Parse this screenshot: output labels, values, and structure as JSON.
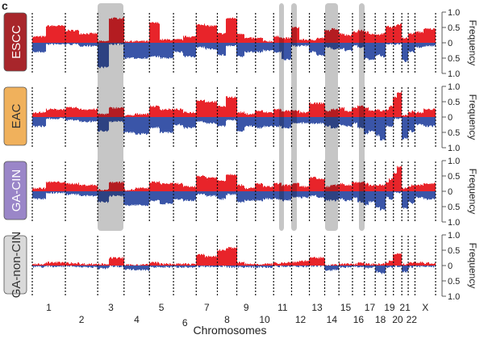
{
  "panel_letter": "c",
  "chart_data": {
    "type": "area",
    "xlabel": "Chromosomes",
    "ylabel": "Frequency",
    "ylim": [
      -1.0,
      1.0
    ],
    "y_ticks": [
      "1.0",
      "0.5",
      "0",
      "0.5",
      "1.0"
    ],
    "grid": false,
    "colors": {
      "gain": "#e8242a",
      "loss": "#3a55a8",
      "highlight": "#c6c6c6"
    },
    "chromosomes": [
      "1",
      "2",
      "3",
      "4",
      "5",
      "6",
      "7",
      "8",
      "9",
      "10",
      "11",
      "12",
      "13",
      "14",
      "15",
      "16",
      "17",
      "18",
      "19",
      "20",
      "21",
      "22",
      "X"
    ],
    "chromosome_sizes_mb": [
      249,
      243,
      198,
      191,
      181,
      171,
      159,
      146,
      141,
      136,
      135,
      134,
      115,
      107,
      102,
      90,
      81,
      78,
      59,
      63,
      48,
      51,
      155
    ],
    "highlighted_chromosomes": [
      "3",
      "11",
      "12",
      "14",
      "17"
    ],
    "value_format": "per chromosome [gain p-arm, gain q-arm, loss p-arm, loss q-arm] (frequency)",
    "series": [
      {
        "name": "ESCC",
        "label_color": "#a8262b",
        "label_text_color": "#ffffff",
        "values": [
          [
            0.2,
            0.55,
            0.3,
            0.05
          ],
          [
            0.4,
            0.3,
            0.05,
            0.1
          ],
          [
            0.05,
            0.8,
            0.8,
            0.05
          ],
          [
            0.05,
            0.05,
            0.5,
            0.5
          ],
          [
            0.65,
            0.1,
            0.45,
            0.5
          ],
          [
            0.1,
            0.2,
            0.3,
            0.45
          ],
          [
            0.6,
            0.55,
            0.15,
            0.2
          ],
          [
            0.3,
            0.8,
            0.4,
            0.1
          ],
          [
            0.3,
            0.15,
            0.45,
            0.3
          ],
          [
            0.15,
            0.05,
            0.3,
            0.25
          ],
          [
            0.2,
            0.15,
            0.3,
            0.55
          ],
          [
            0.5,
            0.1,
            0.1,
            0.1
          ],
          [
            0.1,
            0.15,
            0.3,
            0.4
          ],
          [
            0.4,
            0.45,
            0.15,
            0.2
          ],
          [
            0.3,
            0.25,
            0.2,
            0.25
          ],
          [
            0.35,
            0.4,
            0.1,
            0.15
          ],
          [
            0.35,
            0.3,
            0.5,
            0.55
          ],
          [
            0.25,
            0.3,
            0.4,
            0.45
          ],
          [
            0.55,
            0.5,
            0.05,
            0.05
          ],
          [
            0.55,
            0.6,
            0.05,
            0.05
          ],
          [
            0.15,
            0.15,
            0.55,
            0.6
          ],
          [
            0.3,
            0.3,
            0.3,
            0.3
          ],
          [
            0.35,
            0.45,
            0.15,
            0.1
          ]
        ]
      },
      {
        "name": "EAC",
        "label_color": "#f0b15c",
        "label_text_color": "#333333",
        "values": [
          [
            0.15,
            0.25,
            0.3,
            0.05
          ],
          [
            0.3,
            0.25,
            0.1,
            0.15
          ],
          [
            0.1,
            0.3,
            0.45,
            0.15
          ],
          [
            0.05,
            0.1,
            0.5,
            0.55
          ],
          [
            0.35,
            0.25,
            0.35,
            0.5
          ],
          [
            0.25,
            0.15,
            0.25,
            0.35
          ],
          [
            0.55,
            0.5,
            0.15,
            0.2
          ],
          [
            0.35,
            0.65,
            0.3,
            0.1
          ],
          [
            0.15,
            0.1,
            0.45,
            0.3
          ],
          [
            0.2,
            0.15,
            0.35,
            0.3
          ],
          [
            0.25,
            0.2,
            0.3,
            0.35
          ],
          [
            0.2,
            0.15,
            0.2,
            0.2
          ],
          [
            0.45,
            0.45,
            0.2,
            0.2
          ],
          [
            0.2,
            0.25,
            0.3,
            0.35
          ],
          [
            0.3,
            0.2,
            0.25,
            0.3
          ],
          [
            0.3,
            0.35,
            0.2,
            0.35
          ],
          [
            0.3,
            0.2,
            0.55,
            0.45
          ],
          [
            0.25,
            0.2,
            0.6,
            0.75
          ],
          [
            0.25,
            0.35,
            0.3,
            0.3
          ],
          [
            0.65,
            0.8,
            0.05,
            0.05
          ],
          [
            0.05,
            0.05,
            0.7,
            0.7
          ],
          [
            0.15,
            0.2,
            0.45,
            0.5
          ],
          [
            0.15,
            0.25,
            0.25,
            0.3
          ]
        ]
      },
      {
        "name": "GA-CIN",
        "label_color": "#9a86c8",
        "label_text_color": "#ffffff",
        "values": [
          [
            0.1,
            0.3,
            0.25,
            0.05
          ],
          [
            0.25,
            0.2,
            0.1,
            0.15
          ],
          [
            0.05,
            0.3,
            0.35,
            0.15
          ],
          [
            0.05,
            0.1,
            0.45,
            0.45
          ],
          [
            0.3,
            0.25,
            0.3,
            0.4
          ],
          [
            0.25,
            0.15,
            0.25,
            0.3
          ],
          [
            0.5,
            0.45,
            0.1,
            0.15
          ],
          [
            0.35,
            0.55,
            0.25,
            0.1
          ],
          [
            0.2,
            0.1,
            0.35,
            0.3
          ],
          [
            0.25,
            0.15,
            0.3,
            0.25
          ],
          [
            0.25,
            0.2,
            0.25,
            0.3
          ],
          [
            0.25,
            0.15,
            0.2,
            0.2
          ],
          [
            0.45,
            0.4,
            0.15,
            0.2
          ],
          [
            0.15,
            0.2,
            0.3,
            0.3
          ],
          [
            0.25,
            0.2,
            0.25,
            0.3
          ],
          [
            0.3,
            0.3,
            0.2,
            0.35
          ],
          [
            0.25,
            0.2,
            0.45,
            0.35
          ],
          [
            0.2,
            0.2,
            0.5,
            0.6
          ],
          [
            0.3,
            0.4,
            0.2,
            0.25
          ],
          [
            0.6,
            0.8,
            0.05,
            0.05
          ],
          [
            0.1,
            0.1,
            0.55,
            0.55
          ],
          [
            0.15,
            0.2,
            0.35,
            0.4
          ],
          [
            0.2,
            0.25,
            0.2,
            0.25
          ]
        ]
      },
      {
        "name": "GA-non-CIN",
        "label_color": "#d9d9d9",
        "label_text_color": "#333333",
        "values": [
          [
            0.05,
            0.1,
            0.05,
            0.03
          ],
          [
            0.08,
            0.05,
            0.03,
            0.05
          ],
          [
            0.05,
            0.25,
            0.1,
            0.03
          ],
          [
            0.02,
            0.03,
            0.12,
            0.15
          ],
          [
            0.1,
            0.05,
            0.05,
            0.05
          ],
          [
            0.05,
            0.05,
            0.05,
            0.05
          ],
          [
            0.35,
            0.3,
            0.03,
            0.03
          ],
          [
            0.5,
            0.58,
            0.03,
            0.05
          ],
          [
            0.1,
            0.05,
            0.05,
            0.05
          ],
          [
            0.05,
            0.05,
            0.05,
            0.05
          ],
          [
            0.08,
            0.1,
            0.03,
            0.03
          ],
          [
            0.12,
            0.15,
            0.03,
            0.03
          ],
          [
            0.25,
            0.25,
            0.02,
            0.02
          ],
          [
            0.02,
            0.02,
            0.15,
            0.15
          ],
          [
            0.05,
            0.05,
            0.05,
            0.05
          ],
          [
            0.05,
            0.1,
            0.05,
            0.05
          ],
          [
            0.05,
            0.05,
            0.08,
            0.05
          ],
          [
            0.05,
            0.05,
            0.2,
            0.25
          ],
          [
            0.1,
            0.15,
            0.05,
            0.05
          ],
          [
            0.35,
            0.4,
            0.02,
            0.02
          ],
          [
            0.05,
            0.05,
            0.2,
            0.2
          ],
          [
            0.1,
            0.1,
            0.05,
            0.05
          ],
          [
            0.1,
            0.08,
            0.03,
            0.03
          ]
        ]
      }
    ]
  }
}
